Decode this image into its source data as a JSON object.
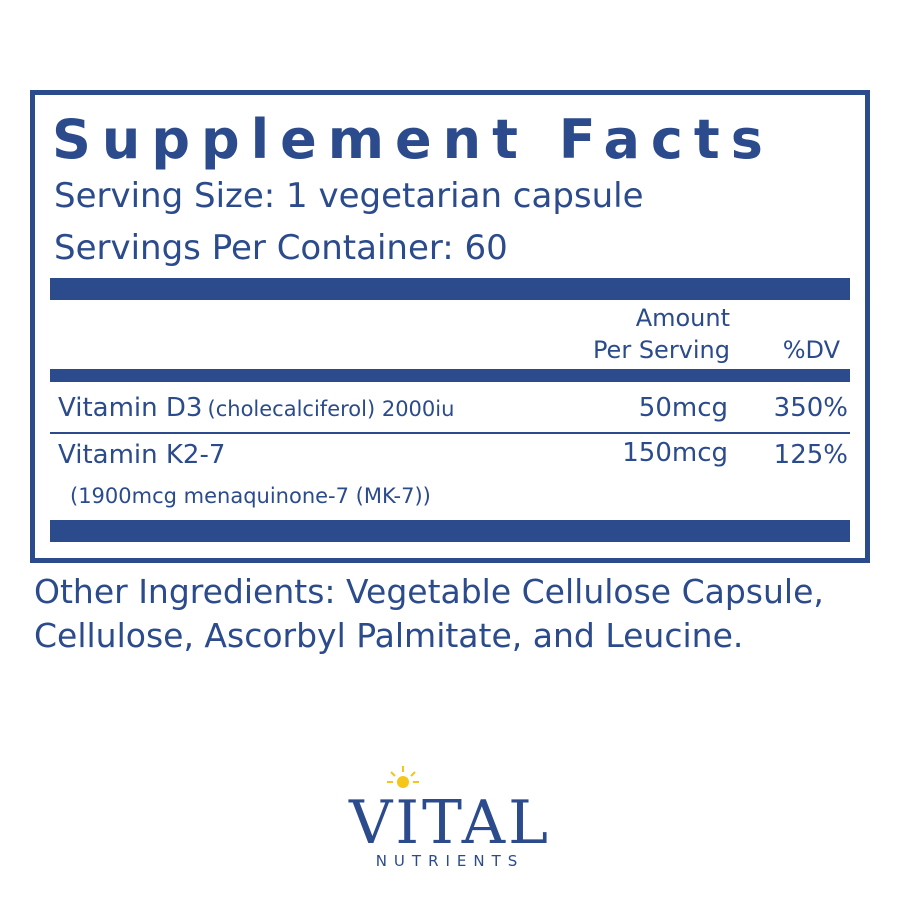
{
  "title": "Supplement Facts",
  "serving_size": "Serving Size: 1 vegetarian capsule",
  "servings_per_container": "Servings Per Container: 60",
  "table": {
    "header": {
      "amount": [
        "Amount",
        "Per Serving"
      ],
      "dv": "%DV"
    },
    "rows": [
      {
        "name": "Vitamin D3",
        "note": "(cholecalciferol) 2000iu",
        "amount": "50mcg",
        "dv": "350%"
      },
      {
        "name": "Vitamin K2-7",
        "note": "(1900mcg menaquinone-7 (MK-7))",
        "amount": "150mcg",
        "dv": "125%"
      }
    ]
  },
  "other_ingredients": [
    "Other Ingredients: Vegetable Cellulose Capsule,",
    "Cellulose, Ascorbyl Palmitate, and Leucine."
  ],
  "logo": {
    "brand": "VITAL",
    "sub": "NUTRIENTS"
  }
}
